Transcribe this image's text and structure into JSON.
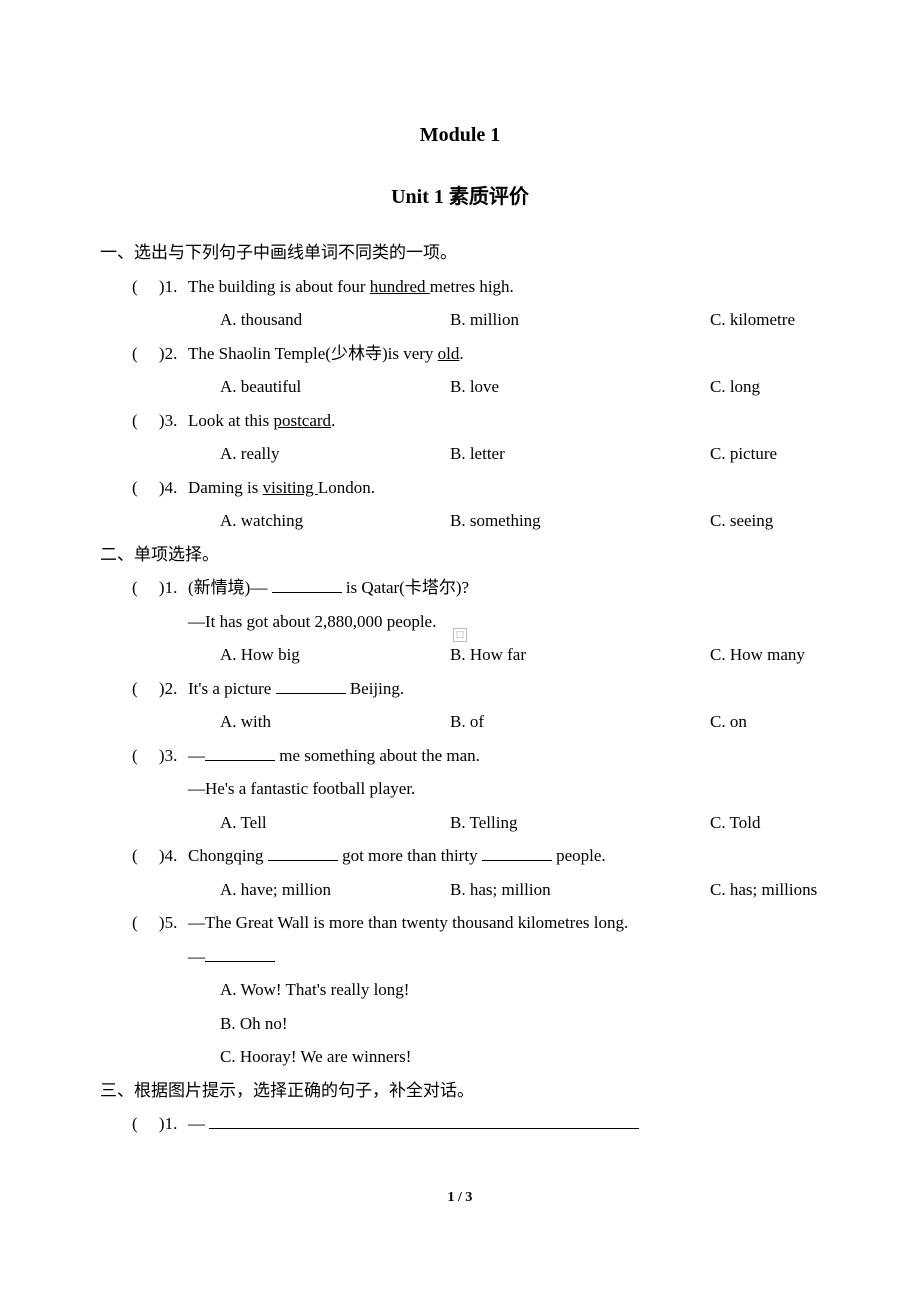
{
  "title_main": "Module 1",
  "title_sub": "Unit 1 素质评价",
  "sections": {
    "s1": {
      "header": "一、选出与下列句子中画线单词不同类的一项。",
      "q1": {
        "paren": "(",
        "paren_close": ")1. ",
        "pre": "The building is about four ",
        "underlined": "hundred ",
        "post": "metres high.",
        "a": "A. thousand",
        "b": "B. million",
        "c": "C. kilometre"
      },
      "q2": {
        "paren": "(",
        "paren_close": ")2. ",
        "pre": "The Shaolin Temple(少林寺)is very ",
        "underlined": "old",
        "post": ".",
        "a": "A. beautiful",
        "b": "B. love",
        "c": "C. long"
      },
      "q3": {
        "paren": "(",
        "paren_close": ")3. ",
        "pre": "Look at this ",
        "underlined": "postcard",
        "post": ".",
        "a": "A. really",
        "b": "B. letter",
        "c": "C. picture"
      },
      "q4": {
        "paren": "(",
        "paren_close": ")4. ",
        "pre": "Daming is ",
        "underlined": "visiting ",
        "post": "London.",
        "a": "A. watching",
        "b": "B. something",
        "c": "C. seeing"
      }
    },
    "s2": {
      "header": "二、单项选择。",
      "q1": {
        "paren": "(",
        "paren_close": ")1. ",
        "line1a": "(新情境)— ",
        "line1b": " is Qatar(卡塔尔)?",
        "line2": "—It has got about 2,880,000 people.",
        "a": "A. How big",
        "b": "B. How far",
        "c": "C. How many"
      },
      "q2": {
        "paren": "(",
        "paren_close": ")2. ",
        "line1a": "It's a picture ",
        "line1b": " Beijing.",
        "a": "A. with",
        "b": "B. of",
        "c": "C. on"
      },
      "q3": {
        "paren": "(",
        "paren_close": ")3. ",
        "line1a": "—",
        "line1b": " me something about the man.",
        "line2": "—He's a fantastic football player.",
        "a": "A. Tell",
        "b": "B. Telling",
        "c": "C. Told"
      },
      "q4": {
        "paren": "(",
        "paren_close": ")4. ",
        "line1a": "Chongqing ",
        "line1b": " got more than thirty ",
        "line1c": " people.",
        "a": "A. have; million",
        "b": "B. has; million",
        "c": "C. has; millions"
      },
      "q5": {
        "paren": "(",
        "paren_close": ")5. ",
        "line1": "—The Great Wall is more than twenty thousand kilometres long.",
        "line2": "—",
        "a": "A. Wow! That's really long!",
        "b": "B. Oh no!",
        "c": "C. Hooray! We are winners!"
      }
    },
    "s3": {
      "header": "三、根据图片提示，选择正确的句子，补全对话。",
      "q1": {
        "paren": "(",
        "paren_close": ")1. ",
        "pre": "— "
      }
    }
  },
  "page_number": "1 / 3"
}
